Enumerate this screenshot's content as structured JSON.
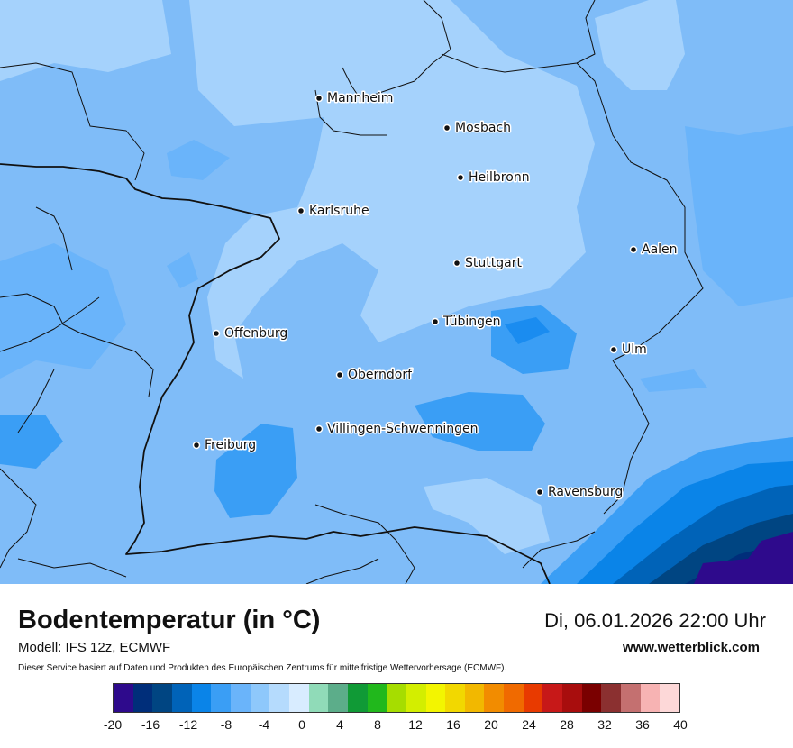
{
  "map": {
    "cities": [
      {
        "name": "Mannheim"
      },
      {
        "name": "Mosbach"
      },
      {
        "name": "Heilbronn"
      },
      {
        "name": "Karlsruhe"
      },
      {
        "name": "Aalen"
      },
      {
        "name": "Stuttgart"
      },
      {
        "name": "Tübingen"
      },
      {
        "name": "Offenburg"
      },
      {
        "name": "Ulm"
      },
      {
        "name": "Oberndorf"
      },
      {
        "name": "Villingen-Schwenningen"
      },
      {
        "name": "Freiburg"
      },
      {
        "name": "Ravensburg"
      }
    ]
  },
  "footer": {
    "title": "Bodentemperatur (in °C)",
    "datetime": "Di, 06.01.2026 22:00 Uhr",
    "model": "Modell: IFS 12z, ECMWF",
    "website": "www.wetterblick.com",
    "disclaimer": "Dieser Service basiert auf Daten und Produkten des Europäischen Zentrums für mittelfristige Wettervorhersage (ECMWF)."
  },
  "colorbar": {
    "unit": "°C",
    "min": -20,
    "max": 40,
    "colors": [
      "#2e0a8c",
      "#002e7a",
      "#004582",
      "#0063b8",
      "#0a84e8",
      "#3a9ef5",
      "#6ab4fa",
      "#8ec8fb",
      "#b5dbfd",
      "#d8ecff",
      "#90dbb8",
      "#5cad8a",
      "#109a36",
      "#21b81c",
      "#a6dd00",
      "#d3ee00",
      "#f3f500",
      "#f2d800",
      "#f2b800",
      "#f28c00",
      "#f06a00",
      "#e83a00",
      "#c71818",
      "#a80d0d",
      "#7a0000",
      "#8b3030",
      "#c47070",
      "#f7b3b3",
      "#fdd8d8"
    ],
    "ticks": [
      "-20",
      "-16",
      "-12",
      "-8",
      "-4",
      "0",
      "4",
      "8",
      "12",
      "16",
      "20",
      "24",
      "28",
      "32",
      "36",
      "40"
    ]
  }
}
